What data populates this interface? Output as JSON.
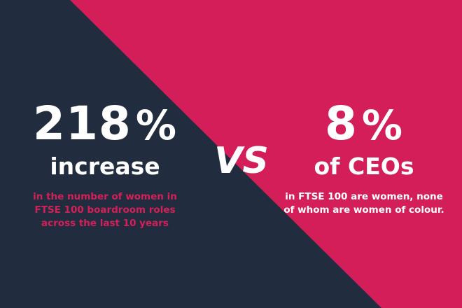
{
  "colors": {
    "navy_background": "#212d3f",
    "magenta_background": "#d41e59"
  },
  "left": {
    "value": "218",
    "unit": "%",
    "headline": "increase",
    "description": "in the number of women in FTSE 100 boardroom roles across the last 10 years"
  },
  "divider": {
    "label": "VS"
  },
  "right": {
    "value": "8",
    "unit": "%",
    "headline": "of CEOs",
    "description": "in FTSE 100 are women, none of whom are women of colour."
  }
}
